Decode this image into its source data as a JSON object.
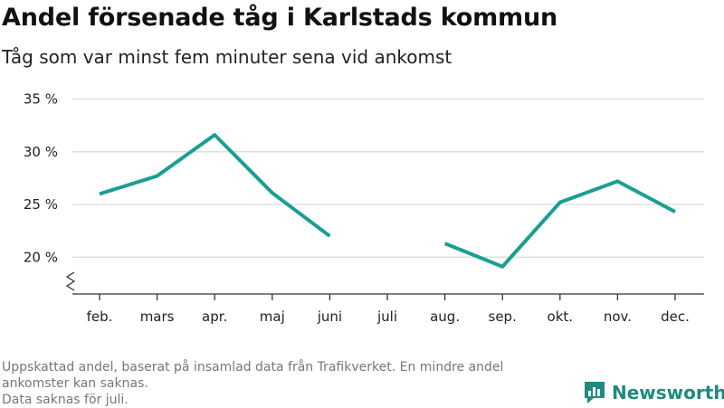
{
  "title": "Andel försenade tåg i Karlstads kommun",
  "subtitle": "Tåg som var minst fem minuter sena vid ankomst",
  "footer": {
    "line1": "Uppskattad andel, baserat på insamlad data från Trafikverket. En mindre andel ankomster kan saknas.",
    "line2": "Data saknas för juli."
  },
  "brand": {
    "name": "Newsworthy",
    "color": "#1f8a80",
    "icon": "newsworthy-logo-icon"
  },
  "colors": {
    "line": "#1a9e93",
    "grid": "#d9d9d9",
    "axis": "#333333"
  },
  "chart_data": {
    "type": "line",
    "title": "Andel försenade tåg i Karlstads kommun",
    "subtitle": "Tåg som var minst fem minuter sena vid ankomst",
    "categories": [
      "feb.",
      "mars",
      "apr.",
      "maj",
      "juni",
      "juli",
      "aug.",
      "sep.",
      "okt.",
      "nov.",
      "dec."
    ],
    "series": [
      {
        "values": [
          26.0,
          27.7,
          31.6,
          26.1,
          22.0,
          null,
          21.3,
          19.1,
          25.2,
          27.2,
          24.3
        ]
      }
    ],
    "yticks": [
      20,
      25,
      30,
      35
    ],
    "ytick_labels": [
      "20 %",
      "25 %",
      "30 %",
      "35 %"
    ],
    "ylim": [
      17.5,
      35
    ],
    "y_axis_break": true,
    "grid": "horizontal",
    "xlabel": "",
    "ylabel": ""
  }
}
